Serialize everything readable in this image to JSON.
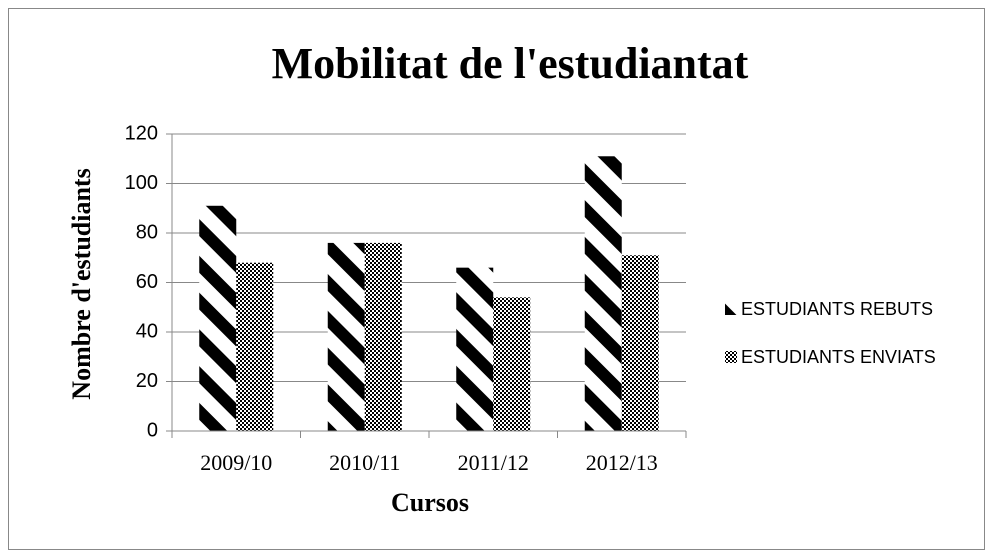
{
  "chart_data": {
    "type": "bar",
    "title": "Mobilitat de l'estudiantat",
    "xlabel": "Cursos",
    "ylabel": "Nombre d'estudiants",
    "categories": [
      "2009/10",
      "2010/11",
      "2011/12",
      "2012/13"
    ],
    "series": [
      {
        "name": "ESTUDIANTS REBUTS",
        "color": "#000000",
        "pattern": "diagonal-stripes",
        "values": [
          91,
          76,
          66,
          111
        ]
      },
      {
        "name": "ESTUDIANTS ENVIATS",
        "color": "#000000",
        "pattern": "checkerboard",
        "values": [
          68,
          76,
          54,
          71
        ]
      }
    ],
    "ylim": [
      0,
      120
    ],
    "yticks": [
      0,
      20,
      40,
      60,
      80,
      100,
      120
    ],
    "grid": true,
    "legend": "right"
  }
}
